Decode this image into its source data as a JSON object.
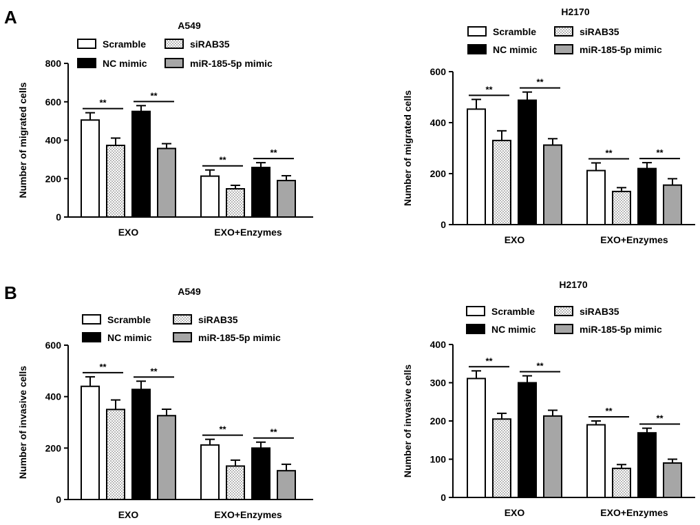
{
  "panels": [
    "A",
    "B"
  ],
  "legend_labels": [
    "Scramble",
    "siRAB35",
    "NC mimic",
    "miR-185-5p mimic"
  ],
  "colors": {
    "scramble": "#ffffff",
    "siRAB35": "dotted",
    "nc_mimic": "#000000",
    "mir_mimic": "#a6a6a6"
  },
  "significance": "**",
  "chart_data": [
    {
      "type": "bar",
      "title": "A549",
      "ylabel": "Number of migrated cells",
      "categories": [
        "EXO",
        "EXO+Enzymes"
      ],
      "ylim": [
        0,
        800
      ],
      "yticks": [
        0,
        200,
        400,
        600,
        800
      ],
      "series": [
        {
          "name": "Scramble",
          "values": [
            505,
            213
          ],
          "errors": [
            38,
            32
          ]
        },
        {
          "name": "siRAB35",
          "values": [
            373,
            147
          ],
          "errors": [
            38,
            18
          ]
        },
        {
          "name": "NC mimic",
          "values": [
            550,
            258
          ],
          "errors": [
            30,
            25
          ]
        },
        {
          "name": "miR-185-5p mimic",
          "values": [
            357,
            190
          ],
          "errors": [
            25,
            25
          ]
        }
      ]
    },
    {
      "type": "bar",
      "title": "H2170",
      "ylabel": "Number of migrated cells",
      "categories": [
        "EXO",
        "EXO+Enzymes"
      ],
      "ylim": [
        0,
        600
      ],
      "yticks": [
        0,
        200,
        400,
        600
      ],
      "series": [
        {
          "name": "Scramble",
          "values": [
            453,
            212
          ],
          "errors": [
            38,
            30
          ]
        },
        {
          "name": "siRAB35",
          "values": [
            330,
            130
          ],
          "errors": [
            38,
            15
          ]
        },
        {
          "name": "NC mimic",
          "values": [
            488,
            220
          ],
          "errors": [
            32,
            23
          ]
        },
        {
          "name": "miR-185-5p mimic",
          "values": [
            312,
            155
          ],
          "errors": [
            25,
            25
          ]
        }
      ]
    },
    {
      "type": "bar",
      "title": "A549",
      "ylabel": "Number of invasive cells",
      "categories": [
        "EXO",
        "EXO+Enzymes"
      ],
      "ylim": [
        0,
        600
      ],
      "yticks": [
        0,
        200,
        400,
        600
      ],
      "series": [
        {
          "name": "Scramble",
          "values": [
            440,
            212
          ],
          "errors": [
            37,
            22
          ]
        },
        {
          "name": "siRAB35",
          "values": [
            350,
            130
          ],
          "errors": [
            37,
            23
          ]
        },
        {
          "name": "NC mimic",
          "values": [
            428,
            200
          ],
          "errors": [
            32,
            23
          ]
        },
        {
          "name": "miR-185-5p mimic",
          "values": [
            326,
            112
          ],
          "errors": [
            25,
            25
          ]
        }
      ]
    },
    {
      "type": "bar",
      "title": "H2170",
      "ylabel": "Number of invasive cells",
      "categories": [
        "EXO",
        "EXO+Enzymes"
      ],
      "ylim": [
        0,
        400
      ],
      "yticks": [
        0,
        100,
        200,
        300,
        400
      ],
      "series": [
        {
          "name": "Scramble",
          "values": [
            311,
            190
          ],
          "errors": [
            20,
            10
          ]
        },
        {
          "name": "siRAB35",
          "values": [
            205,
            76
          ],
          "errors": [
            15,
            10
          ]
        },
        {
          "name": "NC mimic",
          "values": [
            300,
            169
          ],
          "errors": [
            18,
            12
          ]
        },
        {
          "name": "miR-185-5p mimic",
          "values": [
            213,
            90
          ],
          "errors": [
            15,
            10
          ]
        }
      ]
    }
  ]
}
